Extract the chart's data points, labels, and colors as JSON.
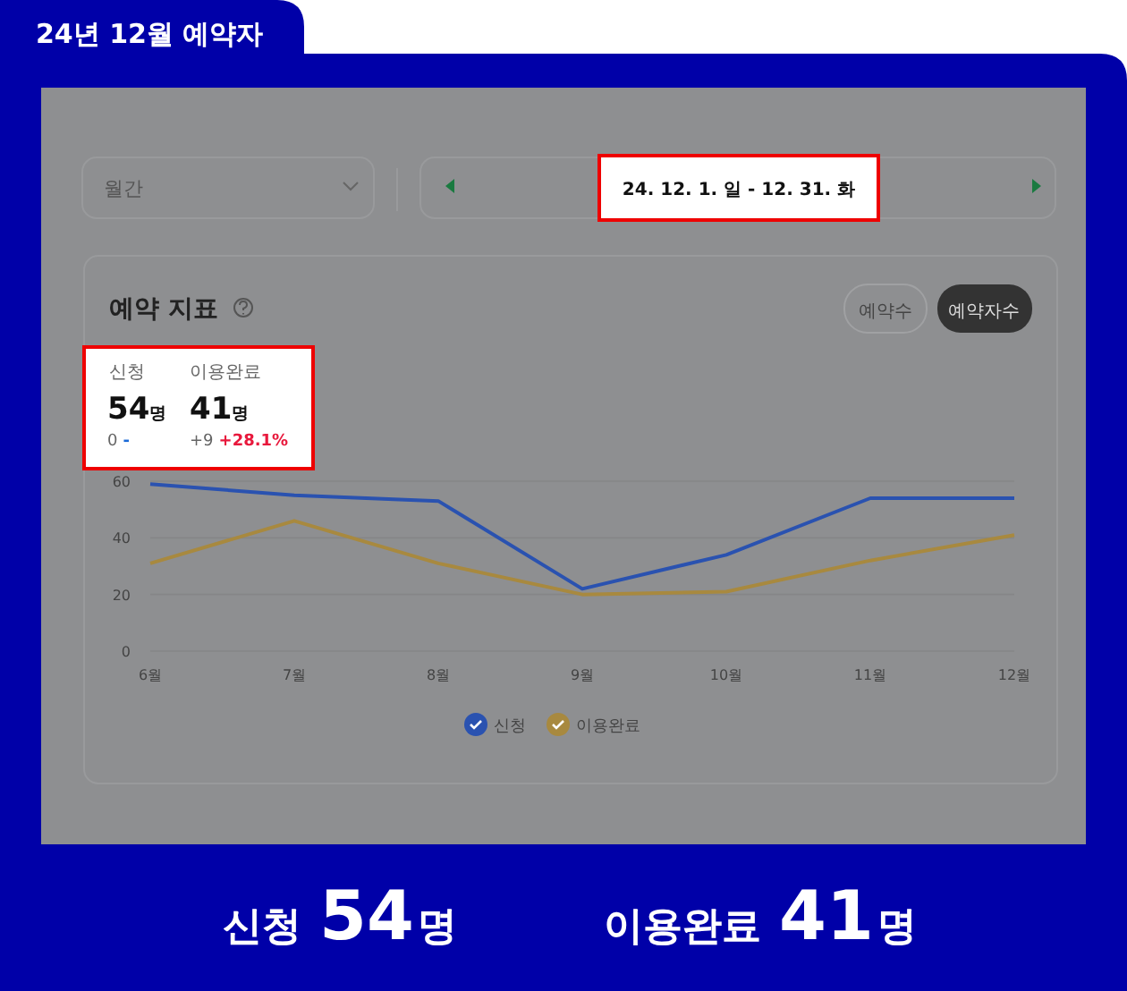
{
  "chart_data": {
    "type": "line",
    "title": "24년 12월 예약자",
    "categories": [
      "6월",
      "7월",
      "8월",
      "9월",
      "10월",
      "11월",
      "12월"
    ],
    "series": [
      {
        "name": "신청",
        "color": "#2a52b0",
        "values": [
          59,
          55,
          53,
          22,
          34,
          54,
          54
        ]
      },
      {
        "name": "이용완료",
        "color": "#a8893f",
        "values": [
          31,
          46,
          31,
          20,
          21,
          32,
          41
        ]
      }
    ],
    "ylim": [
      0,
      60
    ],
    "yticks": [
      0,
      20,
      40,
      60
    ],
    "grid": "y",
    "legend": "bottom",
    "marker": "none",
    "line_style": "solid",
    "annotations": [
      "월간",
      "24. 12. 1. 일 - 12. 31. 화",
      "예약 지표",
      "예약수",
      "예약자수",
      "신청",
      "54명",
      "0 -",
      "이용완료",
      "41명",
      "+9 +28.1%",
      "신청 54명",
      "이용완료 41명"
    ]
  }
}
